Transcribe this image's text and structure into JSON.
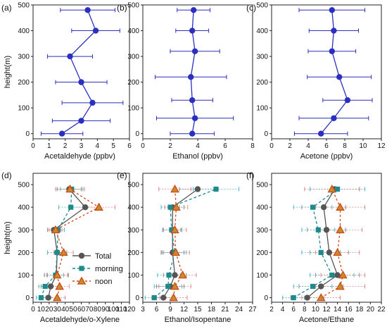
{
  "chart_data": [
    {
      "panel_label": "(a)",
      "type": "scatter",
      "xlabel": "Acetaldehyde (ppbv)",
      "ylabel": "height(m)",
      "xlim": [
        0,
        6
      ],
      "xticks": [
        0,
        1,
        2,
        3,
        4,
        5,
        6
      ],
      "ylim": [
        -20,
        500
      ],
      "yticks": [
        0,
        100,
        200,
        300,
        400,
        500
      ],
      "series": [
        {
          "points": [
            {
              "y": 0,
              "x": 1.8,
              "err": 1.3
            },
            {
              "y": 50,
              "x": 3.0,
              "err": 1.8
            },
            {
              "y": 120,
              "x": 3.7,
              "err": 1.9
            },
            {
              "y": 200,
              "x": 3.0,
              "err": 1.6
            },
            {
              "y": 300,
              "x": 2.3,
              "err": 1.4
            },
            {
              "y": 400,
              "x": 3.9,
              "err": 1.5
            },
            {
              "y": 480,
              "x": 3.4,
              "err": 1.7
            }
          ]
        }
      ]
    },
    {
      "panel_label": "(b)",
      "type": "scatter",
      "xlabel": "Ethanol (ppbv)",
      "ylabel": "",
      "xlim": [
        0,
        8
      ],
      "xticks": [
        0,
        2,
        4,
        6,
        8
      ],
      "ylim": [
        -20,
        500
      ],
      "yticks": [
        0,
        100,
        200,
        300,
        400,
        500
      ],
      "series": [
        {
          "points": [
            {
              "y": 0,
              "x": 3.6,
              "err": 1.6
            },
            {
              "y": 60,
              "x": 3.8,
              "err": 2.8
            },
            {
              "y": 130,
              "x": 3.6,
              "err": 1.5
            },
            {
              "y": 220,
              "x": 3.5,
              "err": 2.6
            },
            {
              "y": 320,
              "x": 3.8,
              "err": 1.8
            },
            {
              "y": 400,
              "x": 3.6,
              "err": 1.2
            },
            {
              "y": 480,
              "x": 3.7,
              "err": 1.2
            }
          ]
        }
      ]
    },
    {
      "panel_label": "(c)",
      "type": "scatter",
      "xlabel": "Acetone (ppbv)",
      "ylabel": "",
      "xlim": [
        0,
        12
      ],
      "xticks": [
        0,
        2,
        4,
        6,
        8,
        10,
        12
      ],
      "ylim": [
        -20,
        500
      ],
      "yticks": [
        0,
        100,
        200,
        300,
        400,
        500
      ],
      "series": [
        {
          "points": [
            {
              "y": 0,
              "x": 5.4,
              "err": 2.9
            },
            {
              "y": 60,
              "x": 6.8,
              "err": 3.8
            },
            {
              "y": 130,
              "x": 8.3,
              "err": 2.7
            },
            {
              "y": 220,
              "x": 7.4,
              "err": 3.5
            },
            {
              "y": 320,
              "x": 6.6,
              "err": 2.6
            },
            {
              "y": 400,
              "x": 6.8,
              "err": 2.7
            },
            {
              "y": 480,
              "x": 6.6,
              "err": 3.6
            }
          ]
        }
      ]
    },
    {
      "panel_label": "(d)",
      "type": "line",
      "xlabel": "Acetaldehyde/o-Xylene",
      "ylabel": "height(m)",
      "xlim": [
        0,
        120
      ],
      "xticks": [
        0,
        10,
        20,
        30,
        40,
        50,
        60,
        70,
        80,
        90,
        100,
        110,
        120
      ],
      "ylim": [
        -20,
        550
      ],
      "yticks": [
        0,
        100,
        200,
        300,
        400,
        500
      ],
      "legend": {
        "position": "center-right",
        "entries": [
          "Total",
          "morning",
          "noon"
        ]
      },
      "series": [
        {
          "name": "Total",
          "points": [
            {
              "y": 0,
              "x": 19,
              "err": 10
            },
            {
              "y": 50,
              "x": 22,
              "err": 12
            },
            {
              "y": 100,
              "x": 29,
              "err": 15
            },
            {
              "y": 200,
              "x": 30,
              "err": 12
            },
            {
              "y": 300,
              "x": 26,
              "err": 8
            },
            {
              "y": 400,
              "x": 65,
              "err": 18
            },
            {
              "y": 480,
              "x": 45,
              "err": 15
            }
          ]
        },
        {
          "name": "morning",
          "points": [
            {
              "y": 0,
              "x": 10,
              "err": 6
            },
            {
              "y": 50,
              "x": 15,
              "err": 8
            },
            {
              "y": 100,
              "x": 28,
              "err": 10
            },
            {
              "y": 200,
              "x": 30,
              "err": 12
            },
            {
              "y": 300,
              "x": 31,
              "err": 8
            },
            {
              "y": 400,
              "x": 47,
              "err": 15
            },
            {
              "y": 480,
              "x": 48,
              "err": 14
            }
          ]
        },
        {
          "name": "noon",
          "points": [
            {
              "y": 0,
              "x": 30,
              "err": 10
            },
            {
              "y": 50,
              "x": 33,
              "err": 12
            },
            {
              "y": 100,
              "x": 30,
              "err": 13
            },
            {
              "y": 200,
              "x": 38,
              "err": 12
            },
            {
              "y": 300,
              "x": 28,
              "err": 8
            },
            {
              "y": 400,
              "x": 82,
              "err": 20
            },
            {
              "y": 480,
              "x": 46,
              "err": 18
            }
          ]
        }
      ]
    },
    {
      "panel_label": "(e)",
      "type": "line",
      "xlabel": "Ethanol/Isopentane",
      "ylabel": "",
      "xlim": [
        3,
        27
      ],
      "xticks": [
        3,
        6,
        9,
        12,
        15,
        18,
        21,
        24,
        27
      ],
      "ylim": [
        -20,
        550
      ],
      "yticks": [
        0,
        100,
        200,
        300,
        400,
        500
      ],
      "series": [
        {
          "name": "Total",
          "points": [
            {
              "y": 0,
              "x": 7.5,
              "err": 2.5
            },
            {
              "y": 50,
              "x": 9.0,
              "err": 3.0
            },
            {
              "y": 100,
              "x": 10.0,
              "err": 2.5
            },
            {
              "y": 200,
              "x": 9.5,
              "err": 2.5
            },
            {
              "y": 300,
              "x": 9.5,
              "err": 2.0
            },
            {
              "y": 400,
              "x": 9.5,
              "err": 2.5
            },
            {
              "y": 480,
              "x": 15.0,
              "err": 4.0
            }
          ]
        },
        {
          "name": "morning",
          "points": [
            {
              "y": 0,
              "x": 5.5,
              "err": 2.0
            },
            {
              "y": 50,
              "x": 8.5,
              "err": 3.0
            },
            {
              "y": 100,
              "x": 8.7,
              "err": 2.5
            },
            {
              "y": 200,
              "x": 10.0,
              "err": 2.5
            },
            {
              "y": 300,
              "x": 9.3,
              "err": 2.0
            },
            {
              "y": 400,
              "x": 9.0,
              "err": 2.0
            },
            {
              "y": 480,
              "x": 19.0,
              "err": 5.0
            }
          ]
        },
        {
          "name": "noon",
          "points": [
            {
              "y": 0,
              "x": 9.7,
              "err": 3.0
            },
            {
              "y": 50,
              "x": 10.0,
              "err": 3.5
            },
            {
              "y": 100,
              "x": 11.7,
              "err": 3.0
            },
            {
              "y": 200,
              "x": 10.2,
              "err": 3.0
            },
            {
              "y": 300,
              "x": 10.0,
              "err": 2.5
            },
            {
              "y": 400,
              "x": 10.3,
              "err": 2.5
            },
            {
              "y": 480,
              "x": 10.0,
              "err": 3.5
            }
          ]
        }
      ]
    },
    {
      "panel_label": "(f)",
      "type": "line",
      "xlabel": "Acetone/Ethane",
      "ylabel": "",
      "xlim": [
        2,
        22
      ],
      "xticks": [
        2,
        4,
        6,
        8,
        10,
        12,
        14,
        16,
        18,
        20,
        22
      ],
      "ylim": [
        -20,
        550
      ],
      "yticks": [
        0,
        100,
        200,
        300,
        400,
        500
      ],
      "series": [
        {
          "name": "Total",
          "points": [
            {
              "y": 0,
              "x": 8.5,
              "err": 3.0
            },
            {
              "y": 50,
              "x": 11.0,
              "err": 4.0
            },
            {
              "y": 100,
              "x": 14.0,
              "err": 4.0
            },
            {
              "y": 200,
              "x": 12.5,
              "err": 3.5
            },
            {
              "y": 300,
              "x": 12.0,
              "err": 3.5
            },
            {
              "y": 400,
              "x": 11.5,
              "err": 4.0
            },
            {
              "y": 480,
              "x": 13.5,
              "err": 4.5
            }
          ]
        },
        {
          "name": "morning",
          "points": [
            {
              "y": 0,
              "x": 6.0,
              "err": 2.0
            },
            {
              "y": 50,
              "x": 9.5,
              "err": 3.5
            },
            {
              "y": 100,
              "x": 13.0,
              "err": 4.0
            },
            {
              "y": 200,
              "x": 11.0,
              "err": 3.5
            },
            {
              "y": 300,
              "x": 10.5,
              "err": 3.0
            },
            {
              "y": 400,
              "x": 9.5,
              "err": 3.5
            },
            {
              "y": 480,
              "x": 14.0,
              "err": 5.0
            }
          ]
        },
        {
          "name": "noon",
          "points": [
            {
              "y": 0,
              "x": 11.0,
              "err": 3.5
            },
            {
              "y": 50,
              "x": 14.5,
              "err": 4.5
            },
            {
              "y": 100,
              "x": 15.0,
              "err": 4.0
            },
            {
              "y": 200,
              "x": 14.0,
              "err": 4.0
            },
            {
              "y": 300,
              "x": 14.5,
              "err": 4.0
            },
            {
              "y": 400,
              "x": 14.5,
              "err": 4.5
            },
            {
              "y": 480,
              "x": 13.0,
              "err": 5.0
            }
          ]
        }
      ]
    }
  ],
  "colors": {
    "top_row": "#2a2fbf",
    "total": "#555555",
    "morning": "#1f8a8e",
    "noon": "#cc4a1a",
    "noon_fill": "#c98a2a",
    "error_total": "#888888",
    "error_morning": "#4fb8c8",
    "error_noon": "#e08585"
  }
}
